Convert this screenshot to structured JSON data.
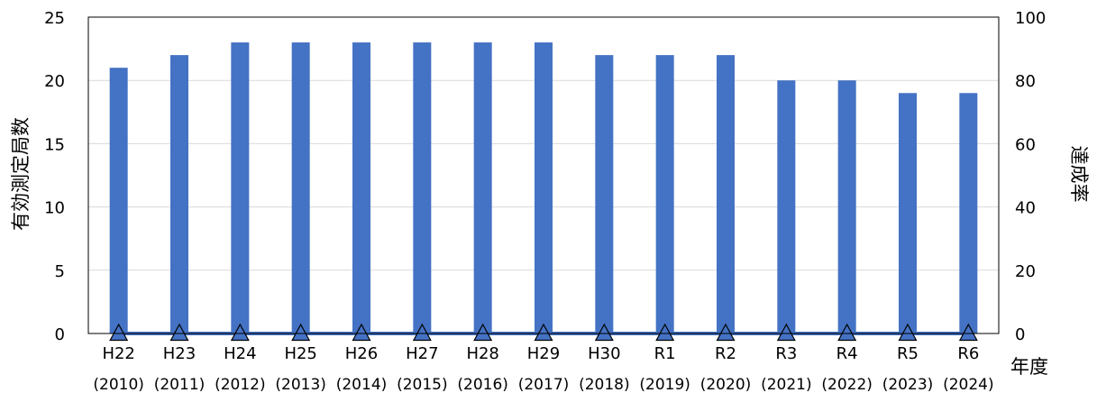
{
  "chart_data": {
    "type": "bar",
    "categories": [
      "H22",
      "H23",
      "H24",
      "H25",
      "H26",
      "H27",
      "H28",
      "H29",
      "H30",
      "R1",
      "R2",
      "R3",
      "R4",
      "R5",
      "R6"
    ],
    "category_years": [
      "(2010)",
      "(2011)",
      "(2012)",
      "(2013)",
      "(2014)",
      "(2015)",
      "(2016)",
      "(2017)",
      "(2018)",
      "(2019)",
      "(2020)",
      "(2021)",
      "(2022)",
      "(2023)",
      "(2024)"
    ],
    "series": [
      {
        "type": "bar",
        "axis": "left",
        "color": "#4472C4",
        "values": [
          21,
          22,
          23,
          23,
          23,
          23,
          23,
          23,
          22,
          22,
          22,
          20,
          20,
          19,
          19
        ]
      },
      {
        "type": "line",
        "axis": "right",
        "color": "#4472C4",
        "marker": "triangle",
        "values": [
          0,
          0,
          0,
          0,
          0,
          0,
          0,
          0,
          0,
          0,
          0,
          0,
          0,
          0,
          0
        ]
      }
    ],
    "xlabel": "年度",
    "ylabel_left": "有効測定局数",
    "ylabel_right": "達成率",
    "ylim_left": [
      0,
      25
    ],
    "yticks_left": [
      0,
      5,
      10,
      15,
      20,
      25
    ],
    "ylim_right": [
      0,
      100
    ],
    "yticks_right": [
      0,
      20,
      40,
      60,
      80,
      100
    ],
    "grid": true,
    "legend": "none"
  }
}
